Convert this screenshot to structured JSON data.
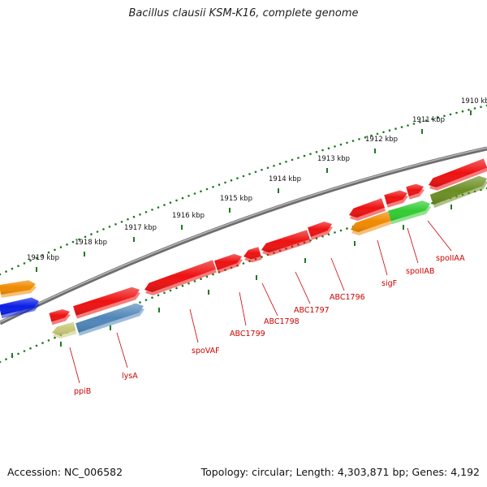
{
  "title": "Bacillus clausii KSM-K16, complete genome",
  "footer": {
    "accession": "Accession: NC_006582",
    "summary": "Topology: circular; Length: 4,303,871 bp; Genes: 4,192"
  },
  "colors": {
    "backbone": "#7a7a7a",
    "tick": "#1f7a1f",
    "label": "#d00000",
    "gene_red": "#ee1111",
    "gene_orange": "#f08a00",
    "gene_blue": "#0a1ee6",
    "gene_green": "#33cc33",
    "gene_olive": "#6b8e23",
    "gene_khaki": "#c8c878",
    "gene_steel": "#4f86b8"
  },
  "scale_labels": [
    "1910 kbp",
    "1911 kbp",
    "1912 kbp",
    "1913 kbp",
    "1914 kbp",
    "1915 kbp",
    "1916 kbp",
    "1917 kbp",
    "1918 kbp",
    "1919 kbp"
  ],
  "gene_labels": [
    "ppiB",
    "lysA",
    "spoVAF",
    "ABC1799",
    "ABC1798",
    "ABC1797",
    "ABC1796",
    "sigF",
    "spoIIAB",
    "spoIIAA"
  ]
}
